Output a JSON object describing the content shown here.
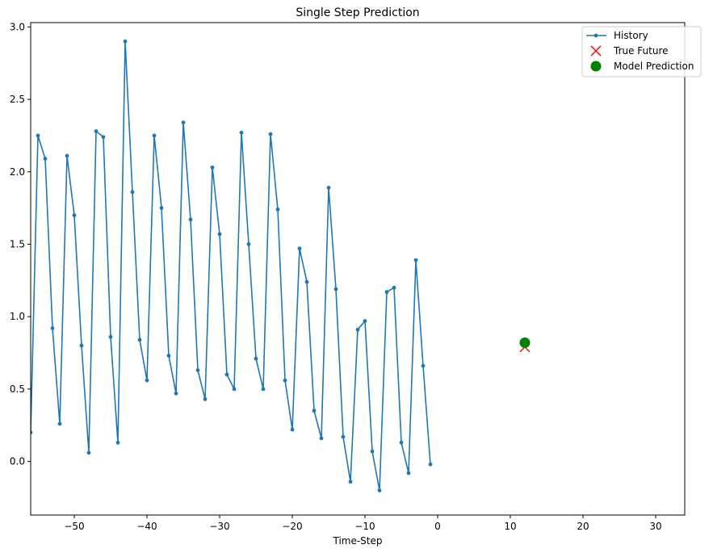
{
  "chart_data": {
    "type": "line",
    "title": "Single Step Prediction",
    "xlabel": "Time-Step",
    "ylabel": "",
    "xlim": [
      -56,
      34
    ],
    "ylim": [
      -0.37,
      3.03
    ],
    "xticks": [
      -50,
      -40,
      -30,
      -20,
      -10,
      0,
      10,
      20,
      30
    ],
    "yticks": [
      0.0,
      0.5,
      1.0,
      1.5,
      2.0,
      2.5,
      3.0
    ],
    "xtick_labels": [
      "−50",
      "−40",
      "−30",
      "−20",
      "−10",
      "0",
      "10",
      "20",
      "30"
    ],
    "ytick_labels": [
      "0.0",
      "0.5",
      "1.0",
      "1.5",
      "2.0",
      "2.5",
      "3.0"
    ],
    "grid": false,
    "legend_position": "top-right",
    "series": [
      {
        "name": "History",
        "kind": "line-with-dots",
        "color": "#1f77b4",
        "x": [
          -56,
          -55,
          -54,
          -53,
          -52,
          -51,
          -50,
          -49,
          -48,
          -47,
          -46,
          -45,
          -44,
          -43,
          -42,
          -41,
          -40,
          -39,
          -38,
          -37,
          -36,
          -35,
          -34,
          -33,
          -32,
          -31,
          -30,
          -29,
          -28,
          -27,
          -26,
          -25,
          -24,
          -23,
          -22,
          -21,
          -20,
          -19,
          -18,
          -17,
          -16,
          -15,
          -14,
          -13,
          -12,
          -11,
          -10,
          -9,
          -8,
          -7,
          -6,
          -5,
          -4,
          -3,
          -2,
          -1
        ],
        "y": [
          0.2,
          2.25,
          2.09,
          0.92,
          0.26,
          2.11,
          1.7,
          0.8,
          0.06,
          2.28,
          2.24,
          0.86,
          0.13,
          2.9,
          1.86,
          0.84,
          0.56,
          2.25,
          1.75,
          0.73,
          0.47,
          2.34,
          1.67,
          0.63,
          0.43,
          2.03,
          1.57,
          0.6,
          0.5,
          2.27,
          1.5,
          0.71,
          0.5,
          2.26,
          1.74,
          0.56,
          0.22,
          1.47,
          1.24,
          0.35,
          0.16,
          1.89,
          1.19,
          0.17,
          -0.14,
          0.91,
          0.97,
          0.07,
          -0.2,
          1.17,
          1.2,
          0.13,
          -0.08,
          1.39,
          0.66,
          -0.02
        ]
      },
      {
        "name": "True Future",
        "kind": "x-marker",
        "color": "#ff0000",
        "x": [
          12
        ],
        "y": [
          0.79
        ]
      },
      {
        "name": "Model Prediction",
        "kind": "circle-marker",
        "color": "#008000",
        "x": [
          12
        ],
        "y": [
          0.82
        ]
      }
    ]
  }
}
